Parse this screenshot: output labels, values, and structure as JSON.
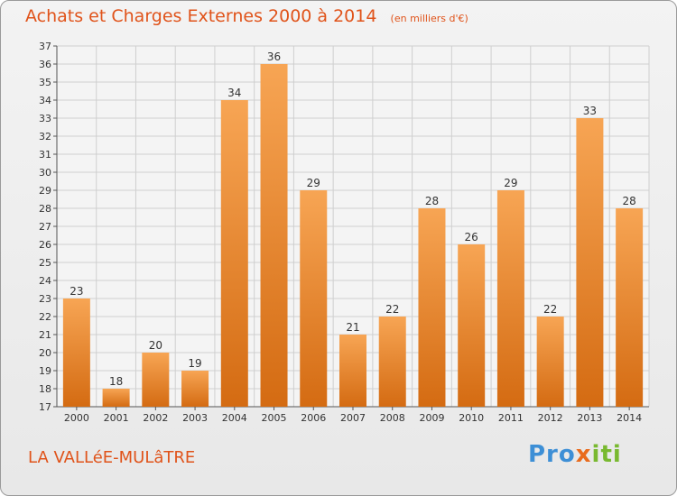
{
  "header": {
    "title": "Achats et Charges Externes 2000 à 2014",
    "subtitle": "(en milliers d'€)"
  },
  "footer": {
    "town": "LA VALLéE-MULâTRE",
    "brand_parts": [
      "Pro",
      "x",
      "iti"
    ]
  },
  "colors": {
    "accent": "#e0531a",
    "bar_light": "#f7a554",
    "bar_dark": "#d46b12",
    "grid": "#cfcfcf"
  },
  "chart_data": {
    "type": "bar",
    "title": "Achats et Charges Externes 2000 à 2014",
    "subtitle": "(en milliers d'€)",
    "xlabel": "",
    "ylabel": "",
    "categories": [
      "2000",
      "2001",
      "2002",
      "2003",
      "2004",
      "2005",
      "2006",
      "2007",
      "2008",
      "2009",
      "2010",
      "2011",
      "2012",
      "2013",
      "2014"
    ],
    "values": [
      23,
      18,
      20,
      19,
      34,
      36,
      29,
      21,
      22,
      28,
      26,
      29,
      22,
      33,
      28
    ],
    "ylim": [
      17,
      37
    ],
    "yticks": [
      17,
      18,
      19,
      20,
      21,
      22,
      23,
      24,
      25,
      26,
      27,
      28,
      29,
      30,
      31,
      32,
      33,
      34,
      35,
      36,
      37
    ],
    "grid": true,
    "legend": "none"
  }
}
